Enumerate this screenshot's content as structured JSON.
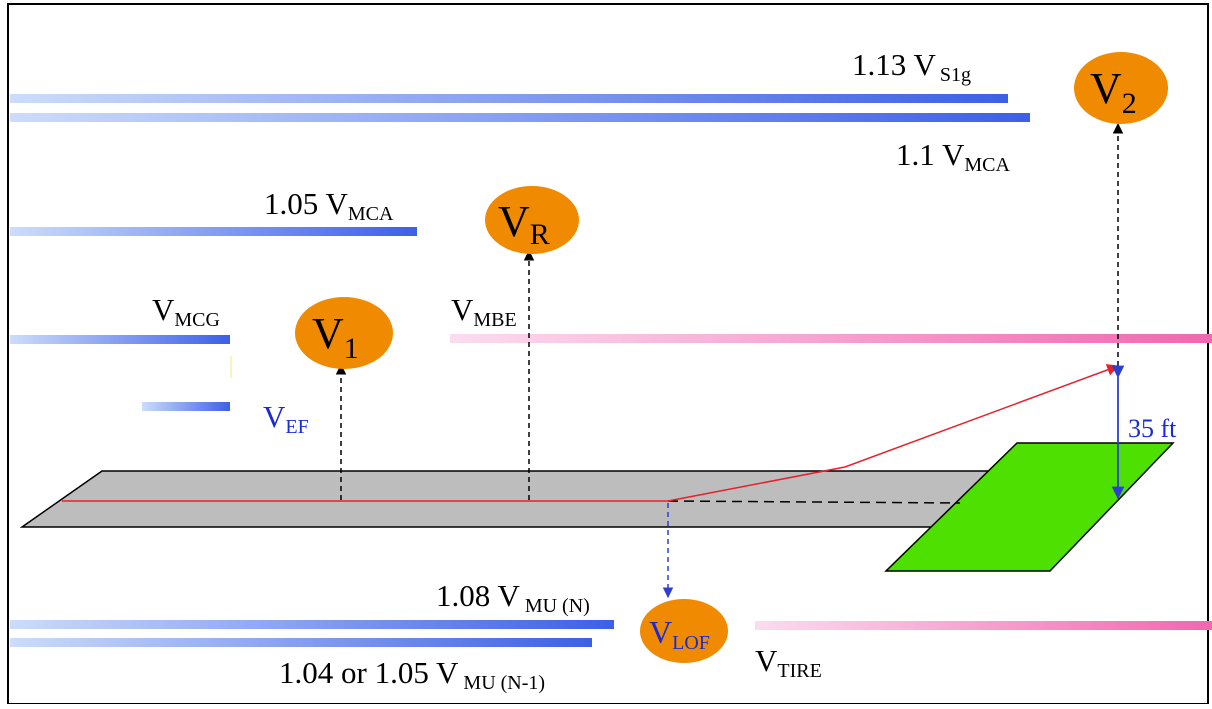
{
  "colors": {
    "blue_bar": "#3d5fe8",
    "pink_bar": "#f266b0",
    "runway": "#bdbdbd",
    "clearway": "#4ee000",
    "ellipse": "#f08a00",
    "red_path": "#e8202a",
    "ef_text": "#1a2bd6"
  },
  "labels": {
    "v_s1g": {
      "main": "1.13 V",
      "sub": "S1g"
    },
    "v_mca_110": {
      "main": "1.1 V",
      "sub": "MCA"
    },
    "v_mca_105": {
      "main": "1.05 V",
      "sub": "MCA"
    },
    "v_mcg": {
      "main": "V",
      "sub": "MCG"
    },
    "v_mbe": {
      "main": "V",
      "sub": "MBE"
    },
    "v_ef": {
      "main": "V",
      "sub": "EF"
    },
    "height": "35 ft",
    "v_mu_n": {
      "main": "1.08 V",
      "sub": " MU (N)"
    },
    "v_mu_n1": {
      "main": "1.04  or 1.05 V",
      "sub": " MU (N-1)"
    },
    "v_tire": {
      "main": "V",
      "sub": "TIRE"
    }
  },
  "ellipses": {
    "v1": {
      "main": "V",
      "sub": "1"
    },
    "vr": {
      "main": "V",
      "sub": "R"
    },
    "v2": {
      "main": "V",
      "sub": "2"
    },
    "vlof": {
      "main": "V",
      "sub": "LOF"
    }
  }
}
